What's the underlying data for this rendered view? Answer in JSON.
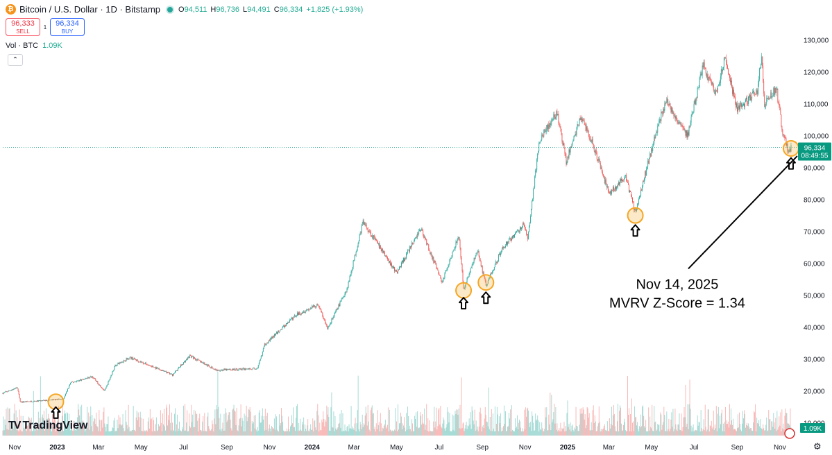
{
  "header": {
    "symbol": "Bitcoin / U.S. Dollar · 1D · Bitstamp",
    "icon": "bitcoin-icon",
    "ohlc": [
      {
        "k": "O",
        "v": "94,511"
      },
      {
        "k": "H",
        "v": "96,736"
      },
      {
        "k": "L",
        "v": "94,491"
      },
      {
        "k": "C",
        "v": "96,334"
      }
    ],
    "change": "+1,825 (+1.93%)",
    "sell_price": "96,333",
    "sell_label": "SELL",
    "spread": "1",
    "buy_price": "96,334",
    "buy_label": "BUY",
    "vol_label": "Vol · BTC",
    "vol_value": "1.09K",
    "collapse_icon": "chevron-up-icon",
    "logo_text": "TradingView",
    "settings_icon": "gear-icon"
  },
  "colors": {
    "up": "#26a69a",
    "down": "#ef5350",
    "marker": "#f5a623",
    "price_tag": "#089981",
    "annotation": "#000000"
  },
  "chart_data": {
    "type": "candlestick",
    "title": "Bitcoin / U.S. Dollar · 1D · Bitstamp",
    "ylim": [
      6000,
      136000
    ],
    "y_ticks": [
      10000,
      20000,
      30000,
      40000,
      50000,
      60000,
      70000,
      80000,
      90000,
      100000,
      110000,
      120000,
      130000
    ],
    "y_tick_labels": [
      "10,000",
      "20,000",
      "30,000",
      "40,000",
      "50,000",
      "60,000",
      "70,000",
      "80,000",
      "90,000",
      "100,000",
      "110,000",
      "120,000",
      "130,000"
    ],
    "x_ticks": [
      {
        "label": "Nov",
        "date": "2022-11-01",
        "bold": false
      },
      {
        "label": "2023",
        "date": "2023-01-01",
        "bold": true
      },
      {
        "label": "Mar",
        "date": "2023-03-01",
        "bold": false
      },
      {
        "label": "May",
        "date": "2023-05-01",
        "bold": false
      },
      {
        "label": "Jul",
        "date": "2023-07-01",
        "bold": false
      },
      {
        "label": "Sep",
        "date": "2023-09-01",
        "bold": false
      },
      {
        "label": "Nov",
        "date": "2023-11-01",
        "bold": false
      },
      {
        "label": "2024",
        "date": "2024-01-01",
        "bold": true
      },
      {
        "label": "Mar",
        "date": "2024-03-01",
        "bold": false
      },
      {
        "label": "May",
        "date": "2024-05-01",
        "bold": false
      },
      {
        "label": "Jul",
        "date": "2024-07-01",
        "bold": false
      },
      {
        "label": "Sep",
        "date": "2024-09-01",
        "bold": false
      },
      {
        "label": "Nov",
        "date": "2024-11-01",
        "bold": false
      },
      {
        "label": "2025",
        "date": "2025-01-01",
        "bold": true
      },
      {
        "label": "Mar",
        "date": "2025-03-01",
        "bold": false
      },
      {
        "label": "May",
        "date": "2025-05-01",
        "bold": false
      },
      {
        "label": "Jul",
        "date": "2025-07-01",
        "bold": false
      },
      {
        "label": "Sep",
        "date": "2025-09-01",
        "bold": false
      },
      {
        "label": "Nov",
        "date": "2025-11-01",
        "bold": false
      }
    ],
    "x_range": [
      "2022-10-15",
      "2025-11-25"
    ],
    "price_path": [
      {
        "date": "2022-10-15",
        "price": 19300
      },
      {
        "date": "2022-11-05",
        "price": 21000
      },
      {
        "date": "2022-11-09",
        "price": 16500
      },
      {
        "date": "2022-12-15",
        "price": 17000
      },
      {
        "date": "2023-01-10",
        "price": 17500
      },
      {
        "date": "2023-01-20",
        "price": 22500
      },
      {
        "date": "2023-02-20",
        "price": 24500
      },
      {
        "date": "2023-03-10",
        "price": 20000
      },
      {
        "date": "2023-03-25",
        "price": 28000
      },
      {
        "date": "2023-04-15",
        "price": 30500
      },
      {
        "date": "2023-06-15",
        "price": 25000
      },
      {
        "date": "2023-07-10",
        "price": 31000
      },
      {
        "date": "2023-08-17",
        "price": 26500
      },
      {
        "date": "2023-10-15",
        "price": 27000
      },
      {
        "date": "2023-10-25",
        "price": 34500
      },
      {
        "date": "2023-12-10",
        "price": 44000
      },
      {
        "date": "2024-01-10",
        "price": 47000
      },
      {
        "date": "2024-01-23",
        "price": 39500
      },
      {
        "date": "2024-02-20",
        "price": 52000
      },
      {
        "date": "2024-03-14",
        "price": 73000
      },
      {
        "date": "2024-05-01",
        "price": 57000
      },
      {
        "date": "2024-06-05",
        "price": 71000
      },
      {
        "date": "2024-07-05",
        "price": 54000
      },
      {
        "date": "2024-07-29",
        "price": 69000
      },
      {
        "date": "2024-08-05",
        "price": 52000
      },
      {
        "date": "2024-08-25",
        "price": 64000
      },
      {
        "date": "2024-09-06",
        "price": 53000
      },
      {
        "date": "2024-09-30",
        "price": 65000
      },
      {
        "date": "2024-10-30",
        "price": 72000
      },
      {
        "date": "2024-11-05",
        "price": 68000
      },
      {
        "date": "2024-11-22",
        "price": 99000
      },
      {
        "date": "2024-12-17",
        "price": 107000
      },
      {
        "date": "2024-12-30",
        "price": 92000
      },
      {
        "date": "2025-01-20",
        "price": 106000
      },
      {
        "date": "2025-02-05",
        "price": 98000
      },
      {
        "date": "2025-03-01",
        "price": 82000
      },
      {
        "date": "2025-03-25",
        "price": 87000
      },
      {
        "date": "2025-04-08",
        "price": 76000
      },
      {
        "date": "2025-05-10",
        "price": 103000
      },
      {
        "date": "2025-05-22",
        "price": 111000
      },
      {
        "date": "2025-06-22",
        "price": 100000
      },
      {
        "date": "2025-07-14",
        "price": 122000
      },
      {
        "date": "2025-08-02",
        "price": 113000
      },
      {
        "date": "2025-08-14",
        "price": 124000
      },
      {
        "date": "2025-09-01",
        "price": 108000
      },
      {
        "date": "2025-09-30",
        "price": 114000
      },
      {
        "date": "2025-10-06",
        "price": 125500
      },
      {
        "date": "2025-10-10",
        "price": 110000
      },
      {
        "date": "2025-10-27",
        "price": 115000
      },
      {
        "date": "2025-11-05",
        "price": 101000
      },
      {
        "date": "2025-11-14",
        "price": 94500
      },
      {
        "date": "2025-11-17",
        "price": 96334
      }
    ],
    "last_price": 96334,
    "last_price_label": "96,334",
    "countdown": "08:49:55",
    "volume_label": "1.09K",
    "markers": [
      {
        "date": "2022-12-30",
        "price": 16600
      },
      {
        "date": "2024-08-05",
        "price": 51500
      },
      {
        "date": "2024-09-06",
        "price": 54000
      },
      {
        "date": "2025-04-08",
        "price": 75000
      },
      {
        "date": "2025-11-17",
        "price": 96000
      }
    ],
    "arrows": [
      {
        "date": "2022-12-30",
        "price": 13200
      },
      {
        "date": "2024-08-05",
        "price": 47500
      },
      {
        "date": "2024-09-06",
        "price": 49200
      },
      {
        "date": "2025-04-08",
        "price": 70300
      },
      {
        "date": "2025-11-17",
        "price": 91300
      }
    ],
    "annotation": {
      "line1": "Nov 14, 2025",
      "line2": "MVRV Z-Score = 1.34",
      "date": "2025-06-07",
      "price": 57000,
      "target_date": "2025-11-14",
      "target_price": 94500
    }
  }
}
